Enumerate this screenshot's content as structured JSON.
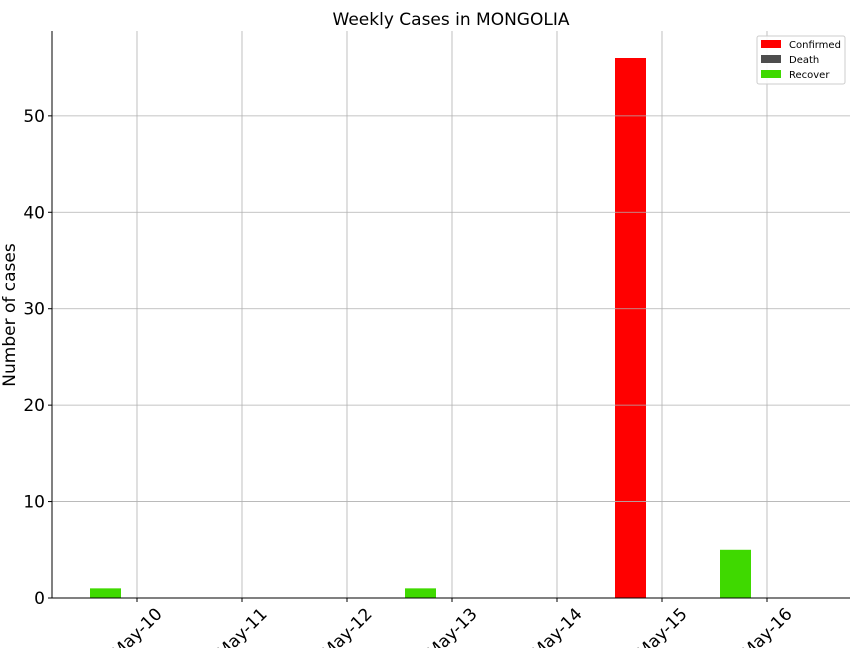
{
  "chart_data": {
    "type": "bar",
    "title": "Weekly Cases in MONGOLIA",
    "xlabel": "",
    "ylabel": "Number of cases",
    "x_tick_labels": [
      "May-10",
      "May-11",
      "May-12",
      "May-13",
      "May-14",
      "May-15",
      "May-16"
    ],
    "y_ticks": [
      0,
      10,
      20,
      30,
      40,
      50
    ],
    "ylim": [
      0,
      58.8
    ],
    "grid": true,
    "legend_position": "top-right",
    "series": [
      {
        "name": "Confirmed",
        "color": "#ff0000",
        "points": [
          {
            "date": "May-15",
            "offset_days": -0.3,
            "value": 56
          }
        ]
      },
      {
        "name": "Death",
        "color": "#4d4d4d",
        "points": []
      },
      {
        "name": "Recover",
        "color": "#3fd900",
        "points": [
          {
            "date": "May-10",
            "offset_days": -0.3,
            "value": 1
          },
          {
            "date": "May-13",
            "offset_days": -0.3,
            "value": 1
          },
          {
            "date": "May-16",
            "offset_days": -0.3,
            "value": 5
          }
        ]
      }
    ]
  }
}
